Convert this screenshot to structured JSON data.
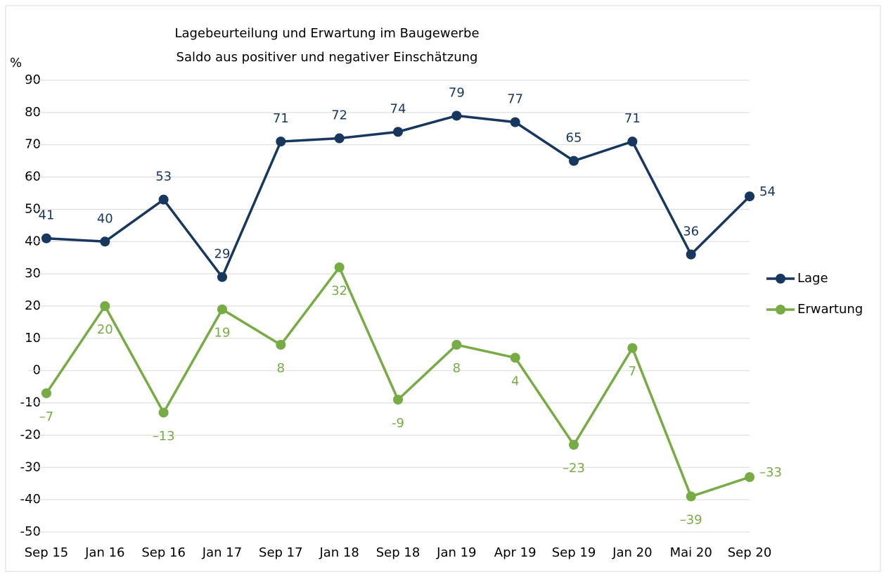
{
  "chart_data": {
    "type": "line",
    "title": "Lagebeurteilung und Erwartung im Baugewerbe",
    "subtitle": "Saldo aus positiver und negativer Einschätzung",
    "y_label": "%",
    "categories": [
      "Sep 15",
      "Jan 16",
      "Sep 16",
      "Jan 17",
      "Sep 17",
      "Jan 18",
      "Sep 18",
      "Jan 19",
      "Apr 19",
      "Sep 19",
      "Jan 20",
      "Mai 20",
      "Sep 20"
    ],
    "series": [
      {
        "name": "Lage",
        "color": "#17375e",
        "values": [
          41,
          40,
          53,
          29,
          71,
          72,
          74,
          79,
          77,
          65,
          71,
          36,
          54
        ]
      },
      {
        "name": "Erwartung",
        "color": "#77ac45",
        "values": [
          -7,
          20,
          -13,
          19,
          8,
          32,
          -9,
          8,
          4,
          -23,
          7,
          -39,
          -33
        ],
        "value_labels": [
          "–7",
          "20",
          "–13",
          "19",
          "8",
          "32",
          "-9",
          "8",
          "4",
          "–23",
          "7",
          "–39",
          "–33"
        ]
      }
    ],
    "ylim": [
      -50,
      90
    ],
    "yticks": [
      -50,
      -40,
      -30,
      -20,
      -10,
      0,
      10,
      20,
      30,
      40,
      50,
      60,
      70,
      80,
      90
    ],
    "grid": true,
    "legend": "right"
  }
}
